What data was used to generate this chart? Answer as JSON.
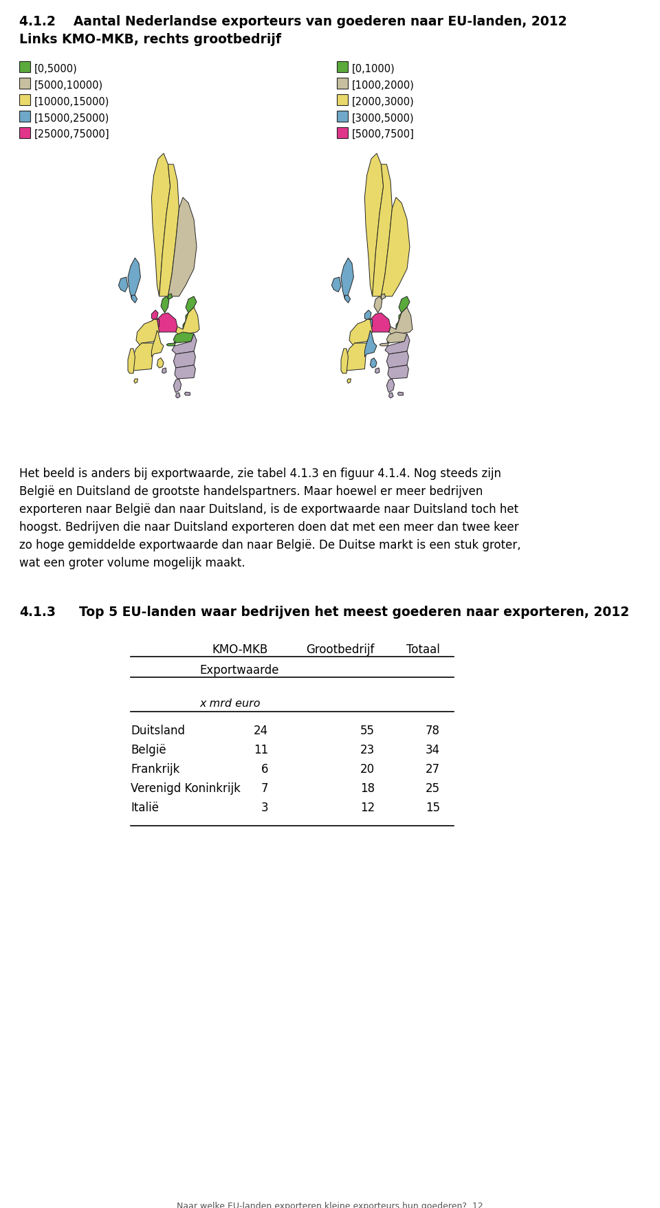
{
  "title_line1": "4.1.2    Aantal Nederlandse exporteurs van goederen naar EU-landen, 2012",
  "title_line2": "Links KMO-MKB, rechts grootbedrijf",
  "legend_left_labels": [
    "[0,5000)",
    "[5000,10000)",
    "[10000,15000)",
    "[15000,25000)",
    "[25000,75000]"
  ],
  "legend_left_colors": [
    "#5aaa3c",
    "#c8bfa0",
    "#e8d96a",
    "#6fa8c8",
    "#e0358a"
  ],
  "legend_right_labels": [
    "[0,1000)",
    "[1000,2000)",
    "[2000,3000)",
    "[3000,5000)",
    "[5000,7500]"
  ],
  "legend_right_colors": [
    "#5aaa3c",
    "#c8bfa0",
    "#e8d96a",
    "#6fa8c8",
    "#e0358a"
  ],
  "body_text_lines": [
    "Het beeld is anders bij exportwaarde, zie tabel 4.1.3 en figuur 4.1.4. Nog steeds zijn",
    "België en Duitsland de grootste handelspartners. Maar hoewel er meer bedrijven",
    "exporteren naar België dan naar Duitsland, is de exportwaarde naar Duitsland toch het",
    "hoogst. Bedrijven die naar Duitsland exporteren doen dat met een meer dan twee keer",
    "zo hoge gemiddelde exportwaarde dan naar België. De Duitse markt is een stuk groter,",
    "wat een groter volume mogelijk maakt."
  ],
  "section_title_num": "4.1.3",
  "section_title_text": "Top 5 EU-landen waar bedrijven het meest goederen naar exporteren, 2012",
  "table_col1_header": "KMO-MKB",
  "table_col2_header": "Grootbedrijf",
  "table_col3_header": "Totaal",
  "table_subheader": "Exportwaarde",
  "table_unit": "x mrd euro",
  "table_rows": [
    [
      "Duitsland",
      "24",
      "55",
      "78"
    ],
    [
      "België",
      "11",
      "23",
      "34"
    ],
    [
      "Frankrijk",
      "6",
      "20",
      "27"
    ],
    [
      "Verenigd Koninkrijk",
      "7",
      "18",
      "25"
    ],
    [
      "Italië",
      "3",
      "12",
      "15"
    ]
  ],
  "footer_text": "Naar welke EU-landen exporteren kleine exporteurs hun goederen?  12",
  "bg_color": "#ffffff",
  "map_bg": "#ffffff",
  "colors": {
    "yellow": "#e8d96a",
    "tan": "#c8bfa0",
    "blue": "#6fa8c8",
    "green": "#5aaa3c",
    "pink": "#e0358a",
    "lavender": "#b8a8c0",
    "edge": "#222222"
  }
}
